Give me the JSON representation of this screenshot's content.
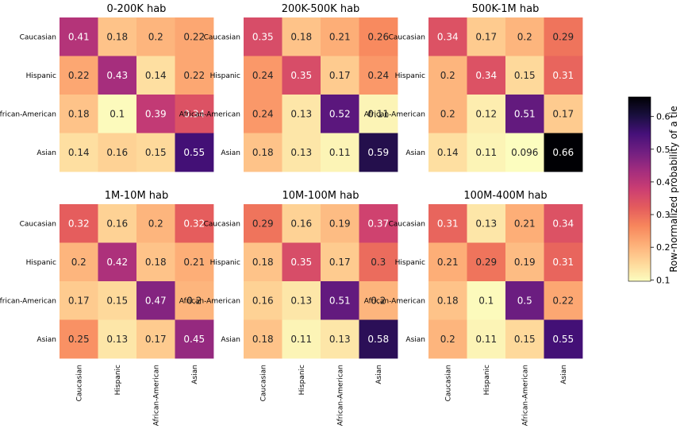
{
  "chart_data": {
    "type": "heatmap",
    "row_labels": [
      "Caucasian",
      "Hispanic",
      "African-American",
      "Asian"
    ],
    "col_labels": [
      "Caucasian",
      "Hispanic",
      "African-American",
      "Asian"
    ],
    "colormap": "magma_r",
    "vmin": 0.096,
    "vmax": 0.66,
    "colorbar": {
      "label": "Row-normalized probability of a tie",
      "ticks": [
        0.1,
        0.2,
        0.3,
        0.4,
        0.5,
        0.6
      ],
      "tick_labels": [
        "0.1",
        "0.2",
        "0.3",
        "0.4",
        "0.5",
        "0.6"
      ],
      "placement": "right"
    },
    "panels": [
      {
        "title": "0-200K hab",
        "values": [
          [
            0.41,
            0.18,
            0.2,
            0.22
          ],
          [
            0.22,
            0.43,
            0.14,
            0.22
          ],
          [
            0.18,
            0.1,
            0.39,
            0.34
          ],
          [
            0.14,
            0.16,
            0.15,
            0.55
          ]
        ],
        "labels": [
          [
            "0.41",
            "0.18",
            "0.2",
            "0.22"
          ],
          [
            "0.22",
            "0.43",
            "0.14",
            "0.22"
          ],
          [
            "0.18",
            "0.1",
            "0.39",
            "0.34"
          ],
          [
            "0.14",
            "0.16",
            "0.15",
            "0.55"
          ]
        ]
      },
      {
        "title": "200K-500K hab",
        "values": [
          [
            0.35,
            0.18,
            0.21,
            0.26
          ],
          [
            0.24,
            0.35,
            0.17,
            0.24
          ],
          [
            0.24,
            0.13,
            0.52,
            0.11
          ],
          [
            0.18,
            0.13,
            0.11,
            0.59
          ]
        ],
        "labels": [
          [
            "0.35",
            "0.18",
            "0.21",
            "0.26"
          ],
          [
            "0.24",
            "0.35",
            "0.17",
            "0.24"
          ],
          [
            "0.24",
            "0.13",
            "0.52",
            "0.11"
          ],
          [
            "0.18",
            "0.13",
            "0.11",
            "0.59"
          ]
        ]
      },
      {
        "title": "500K-1M hab",
        "values": [
          [
            0.34,
            0.17,
            0.2,
            0.29
          ],
          [
            0.2,
            0.34,
            0.15,
            0.31
          ],
          [
            0.2,
            0.12,
            0.51,
            0.17
          ],
          [
            0.14,
            0.11,
            0.096,
            0.66
          ]
        ],
        "labels": [
          [
            "0.34",
            "0.17",
            "0.2",
            "0.29"
          ],
          [
            "0.2",
            "0.34",
            "0.15",
            "0.31"
          ],
          [
            "0.2",
            "0.12",
            "0.51",
            "0.17"
          ],
          [
            "0.14",
            "0.11",
            "0.096",
            "0.66"
          ]
        ]
      },
      {
        "title": "1M-10M hab",
        "values": [
          [
            0.32,
            0.16,
            0.2,
            0.32
          ],
          [
            0.2,
            0.42,
            0.18,
            0.21
          ],
          [
            0.17,
            0.15,
            0.47,
            0.2
          ],
          [
            0.25,
            0.13,
            0.17,
            0.45
          ]
        ],
        "labels": [
          [
            "0.32",
            "0.16",
            "0.2",
            "0.32"
          ],
          [
            "0.2",
            "0.42",
            "0.18",
            "0.21"
          ],
          [
            "0.17",
            "0.15",
            "0.47",
            "0.2"
          ],
          [
            "0.25",
            "0.13",
            "0.17",
            "0.45"
          ]
        ]
      },
      {
        "title": "10M-100M hab",
        "values": [
          [
            0.29,
            0.16,
            0.19,
            0.37
          ],
          [
            0.18,
            0.35,
            0.17,
            0.3
          ],
          [
            0.16,
            0.13,
            0.51,
            0.2
          ],
          [
            0.18,
            0.11,
            0.13,
            0.58
          ]
        ],
        "labels": [
          [
            "0.29",
            "0.16",
            "0.19",
            "0.37"
          ],
          [
            "0.18",
            "0.35",
            "0.17",
            "0.3"
          ],
          [
            "0.16",
            "0.13",
            "0.51",
            "0.2"
          ],
          [
            "0.18",
            "0.11",
            "0.13",
            "0.58"
          ]
        ]
      },
      {
        "title": "100M-400M hab",
        "values": [
          [
            0.31,
            0.13,
            0.21,
            0.34
          ],
          [
            0.21,
            0.29,
            0.19,
            0.31
          ],
          [
            0.18,
            0.1,
            0.5,
            0.22
          ],
          [
            0.2,
            0.11,
            0.15,
            0.55
          ]
        ],
        "labels": [
          [
            "0.31",
            "0.13",
            "0.21",
            "0.34"
          ],
          [
            "0.21",
            "0.29",
            "0.19",
            "0.31"
          ],
          [
            "0.18",
            "0.1",
            "0.5",
            "0.22"
          ],
          [
            "0.2",
            "0.11",
            "0.15",
            "0.55"
          ]
        ]
      }
    ]
  }
}
